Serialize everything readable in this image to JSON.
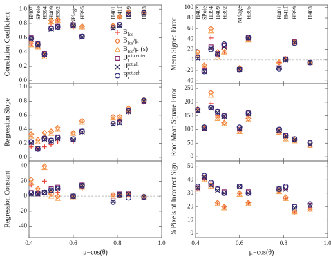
{
  "chart_data": [
    {
      "type": "scatter",
      "ylabel": "Correlation Coefficient",
      "legend": "right",
      "ylim": [
        -0.04,
        1.06
      ],
      "yticks": [
        {
          "value": 0,
          "label": "0.0"
        },
        0.2,
        0.4,
        0.6,
        0.8,
        {
          "value": 1,
          "label": "1.0"
        }
      ],
      "x": [
        0.41,
        0.44,
        0.47,
        0.5,
        0.53,
        0.6,
        0.64,
        0.78,
        0.81,
        0.85,
        0.92
      ],
      "annotations": [
        "H407",
        "SPole",
        "H394",
        "H409",
        "H392",
        "NPlage",
        "H395",
        "H401",
        "H411",
        "H399",
        "H403"
      ],
      "series": [
        {
          "name": "B",
          "sub": "los",
          "marker": "plus",
          "color": "#e8433a",
          "values": [
            0.52,
            0.48,
            0.35,
            0.8,
            0.83,
            0.75,
            0.74,
            0.75,
            0.88,
            0.95,
            0.95
          ]
        },
        {
          "name": "B",
          "sub": "los",
          "suffix": "/μ",
          "marker": "diamond",
          "color": "#f07c3a",
          "values": [
            0.55,
            0.5,
            0.36,
            0.84,
            0.85,
            0.78,
            0.76,
            0.77,
            0.9,
            0.96,
            0.96
          ]
        },
        {
          "name": "B",
          "sub": "los",
          "suffix": "/μ (s)",
          "marker": "triangle",
          "color": "#f5a55a",
          "values": [
            0.5,
            0.47,
            0.33,
            0.82,
            0.84,
            0.76,
            0.75,
            0.76,
            0.89,
            0.95,
            0.96
          ]
        },
        {
          "name": "B",
          "sub": "r",
          "sup": "pot,center",
          "marker": "square",
          "color": "#8c2a6e",
          "values": [
            0.6,
            0.52,
            0.38,
            0.73,
            0.76,
            0.78,
            0.62,
            0.74,
            0.78,
            0.93,
            0.95
          ]
        },
        {
          "name": "B",
          "sub": "r",
          "sup": "pot,all",
          "marker": "cross",
          "color": "#2b2b55",
          "values": [
            0.58,
            0.5,
            0.37,
            0.72,
            0.75,
            0.77,
            0.61,
            0.73,
            0.77,
            0.93,
            0.94
          ]
        },
        {
          "name": "B",
          "sub": "r",
          "sup": "pot,sph",
          "marker": "circle",
          "color": "#2d2a78",
          "values": [
            0.59,
            0.51,
            0.37,
            0.73,
            0.75,
            0.77,
            0.62,
            0.74,
            0.78,
            0.93,
            0.95
          ]
        }
      ]
    },
    {
      "type": "scatter",
      "ylabel": "Regression Slope",
      "ylim": [
        -0.05,
        1.05
      ],
      "yticks": [
        {
          "value": 0,
          "label": "0.0"
        },
        0.2,
        0.4,
        0.6,
        0.8,
        {
          "value": 1,
          "label": "1.0"
        }
      ],
      "x": [
        0.41,
        0.44,
        0.47,
        0.5,
        0.53,
        0.6,
        0.64,
        0.78,
        0.81,
        0.85,
        0.92
      ],
      "series": [
        {
          "values": [
            0.15,
            0.12,
            0.15,
            0.18,
            0.22,
            0.23,
            0.35,
            0.48,
            0.52,
            0.64,
            0.78
          ]
        },
        {
          "values": [
            0.33,
            0.25,
            0.35,
            0.37,
            0.42,
            0.35,
            0.52,
            0.58,
            0.58,
            0.7,
            0.82
          ]
        },
        {
          "values": [
            0.3,
            0.22,
            0.3,
            0.34,
            0.4,
            0.34,
            0.5,
            0.56,
            0.56,
            0.68,
            0.81
          ]
        },
        {
          "values": [
            0.22,
            0.13,
            0.27,
            0.24,
            0.29,
            0.26,
            0.37,
            0.48,
            0.5,
            0.66,
            0.8
          ]
        },
        {
          "values": [
            0.21,
            0.12,
            0.26,
            0.23,
            0.27,
            0.25,
            0.36,
            0.47,
            0.49,
            0.65,
            0.8
          ]
        },
        {
          "values": [
            0.22,
            0.12,
            0.27,
            0.24,
            0.28,
            0.26,
            0.37,
            0.48,
            0.5,
            0.66,
            0.81
          ]
        }
      ]
    },
    {
      "type": "scatter",
      "ylabel": "Regression Constant",
      "xlabel": "μ=cos(θ)",
      "zero_line": true,
      "xlim": [
        0.4,
        1.0
      ],
      "xticks": [
        0.4,
        0.6,
        0.8,
        {
          "value": 1,
          "label": "1.0"
        }
      ],
      "ylim": [
        -55,
        47
      ],
      "yticks": [
        -40,
        -20,
        0,
        20,
        40
      ],
      "x": [
        0.41,
        0.44,
        0.47,
        0.5,
        0.53,
        0.6,
        0.64,
        0.78,
        0.81,
        0.85,
        0.92
      ],
      "series": [
        {
          "values": [
            15,
            5,
            20,
            5,
            5,
            0,
            10,
            2,
            2,
            3,
            0
          ]
        },
        {
          "values": [
            22,
            10,
            40,
            3,
            0,
            0,
            15,
            2,
            2,
            3,
            0
          ]
        },
        {
          "values": [
            18,
            8,
            38,
            0,
            -3,
            -1,
            12,
            0,
            1,
            2,
            -1
          ]
        },
        {
          "values": [
            5,
            3,
            5,
            10,
            12,
            0,
            15,
            -5,
            3,
            3,
            -1
          ]
        },
        {
          "values": [
            3,
            3,
            5,
            8,
            10,
            0,
            14,
            -7,
            2,
            3,
            -1
          ]
        },
        {
          "values": [
            4,
            4,
            5,
            8,
            10,
            0,
            14,
            -8,
            2,
            -2,
            -1
          ]
        }
      ]
    },
    {
      "type": "scatter",
      "ylabel": "Mean Signed Error",
      "zero_line": true,
      "ylim": [
        -45,
        105
      ],
      "yticks": [
        -40,
        -20,
        0,
        20,
        40,
        60,
        80,
        100
      ],
      "x": [
        0.41,
        0.44,
        0.47,
        0.5,
        0.53,
        0.6,
        0.64,
        0.78,
        0.81,
        0.85,
        0.92
      ],
      "annotations": [
        "H407",
        "SPole",
        "H394",
        "H409",
        "H392",
        "NPlage",
        "H395",
        "H401",
        "H411",
        "H399",
        "H403"
      ],
      "series": [
        {
          "values": [
            5,
            -15,
            42,
            10,
            15,
            -18,
            40,
            -5,
            0,
            32,
            -5
          ]
        },
        {
          "values": [
            15,
            -10,
            60,
            15,
            20,
            -15,
            40,
            -5,
            2,
            35,
            -5
          ]
        },
        {
          "values": [
            10,
            -12,
            55,
            5,
            15,
            -16,
            38,
            -3,
            2,
            34,
            -5
          ]
        },
        {
          "values": [
            5,
            -20,
            25,
            12,
            28,
            -18,
            42,
            -15,
            2,
            35,
            -5
          ]
        },
        {
          "values": [
            3,
            -22,
            22,
            12,
            25,
            -18,
            42,
            -15,
            0,
            33,
            -5
          ]
        },
        {
          "values": [
            5,
            -22,
            20,
            10,
            30,
            -18,
            43,
            -17,
            1,
            32,
            -5
          ]
        }
      ]
    },
    {
      "type": "scatter",
      "ylabel": "Root Mean Square Error",
      "ylim": [
        -15,
        268
      ],
      "yticks": [
        0,
        50,
        100,
        150,
        200,
        250
      ],
      "x": [
        0.41,
        0.44,
        0.47,
        0.5,
        0.53,
        0.6,
        0.64,
        0.78,
        0.81,
        0.85,
        0.92
      ],
      "series": [
        {
          "values": [
            170,
            105,
            195,
            150,
            145,
            100,
            150,
            95,
            75,
            65,
            45
          ]
        },
        {
          "values": [
            175,
            110,
            235,
            145,
            125,
            95,
            140,
            90,
            70,
            60,
            40
          ]
        },
        {
          "values": [
            170,
            108,
            225,
            140,
            120,
            92,
            135,
            88,
            65,
            58,
            40
          ]
        },
        {
          "values": [
            170,
            105,
            180,
            165,
            150,
            105,
            160,
            98,
            78,
            65,
            48
          ]
        },
        {
          "values": [
            168,
            103,
            178,
            162,
            148,
            103,
            158,
            97,
            76,
            63,
            45
          ]
        },
        {
          "values": [
            172,
            108,
            180,
            165,
            150,
            108,
            160,
            100,
            78,
            65,
            52
          ]
        }
      ]
    },
    {
      "type": "scatter",
      "ylabel": "% Pixels of Incorrect Sign",
      "xlabel": "μ=cos(θ)",
      "xlim": [
        0.4,
        1.0
      ],
      "xticks": [
        0.4,
        0.6,
        0.8,
        {
          "value": 1,
          "label": "1.0"
        }
      ],
      "ylim": [
        -3,
        54
      ],
      "yticks": [
        0,
        10,
        20,
        30,
        40,
        50
      ],
      "x": [
        0.41,
        0.44,
        0.47,
        0.5,
        0.53,
        0.6,
        0.64,
        0.78,
        0.81,
        0.85,
        0.92
      ],
      "series": [
        {
          "values": [
            33,
            42,
            35,
            22,
            20,
            30,
            23,
            32,
            26,
            16,
            18
          ]
        },
        {
          "values": [
            34,
            41,
            36,
            23,
            20,
            30,
            23,
            32,
            27,
            16,
            18
          ]
        },
        {
          "values": [
            33,
            40,
            35,
            22,
            19,
            29,
            22,
            31,
            26,
            16,
            18
          ]
        },
        {
          "values": [
            34,
            42,
            37,
            33,
            31,
            35,
            31,
            33,
            34,
            20,
            21
          ]
        },
        {
          "values": [
            34,
            42,
            36,
            32,
            30,
            35,
            30,
            33,
            33,
            19,
            21
          ]
        },
        {
          "values": [
            35,
            43,
            38,
            33,
            30,
            35,
            30,
            33,
            35,
            20,
            22
          ]
        }
      ]
    }
  ]
}
